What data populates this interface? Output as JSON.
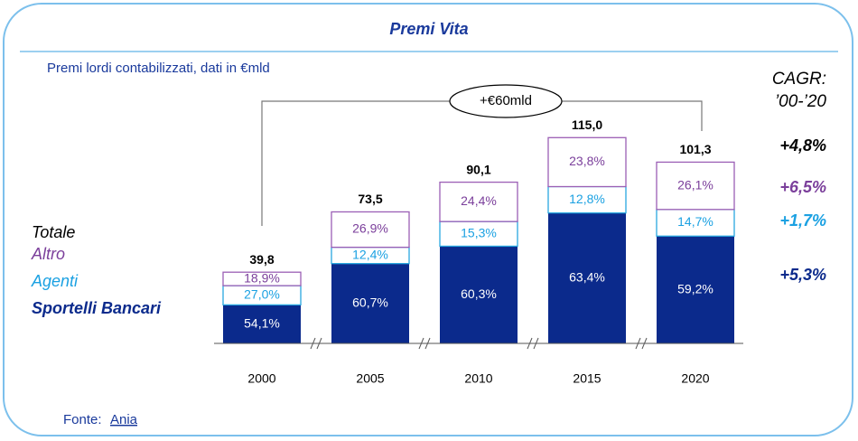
{
  "chart_data": {
    "type": "bar",
    "stacked": true,
    "title": "Premi Vita",
    "subtitle": "Premi lordi contabilizzati, dati in €mld",
    "categories": [
      "2000",
      "2005",
      "2010",
      "2015",
      "2020"
    ],
    "totals": {
      "name": "Totale",
      "color": "#000000",
      "values": [
        39.8,
        73.5,
        90.1,
        115.0,
        101.3
      ],
      "value_labels": [
        "39,8",
        "73,5",
        "90,1",
        "115,0",
        "101,3"
      ],
      "cagr": "+4,8%"
    },
    "series": [
      {
        "name": "Sportelli Bancari",
        "color": "#0b2a8c",
        "text_color": "#0b2a8c",
        "values": [
          54.1,
          60.7,
          60.3,
          63.4,
          59.2
        ],
        "value_labels": [
          "54,1%",
          "60,7%",
          "60,3%",
          "63,4%",
          "59,2%"
        ],
        "cagr": "+5,3%"
      },
      {
        "name": "Agenti",
        "color": "#29a8e0",
        "text_color": "#1ba1e2",
        "values": [
          27.0,
          12.4,
          15.3,
          12.8,
          14.7
        ],
        "value_labels": [
          "27,0%",
          "12,4%",
          "15,3%",
          "12,8%",
          "14,7%"
        ],
        "cagr": "+1,7%"
      },
      {
        "name": "Altro",
        "color": "#9b5fb5",
        "text_color": "#7b3f9b",
        "values": [
          18.9,
          26.9,
          24.4,
          23.8,
          26.1
        ],
        "value_labels": [
          "18,9%",
          "26,9%",
          "24,4%",
          "23,8%",
          "26,1%"
        ],
        "cagr": "+6,5%"
      }
    ],
    "annotation": "+€60mld",
    "cagr_title": "CAGR:",
    "cagr_period": "’00-’20",
    "source": {
      "label": "Fonte:",
      "name": "Ania"
    }
  }
}
